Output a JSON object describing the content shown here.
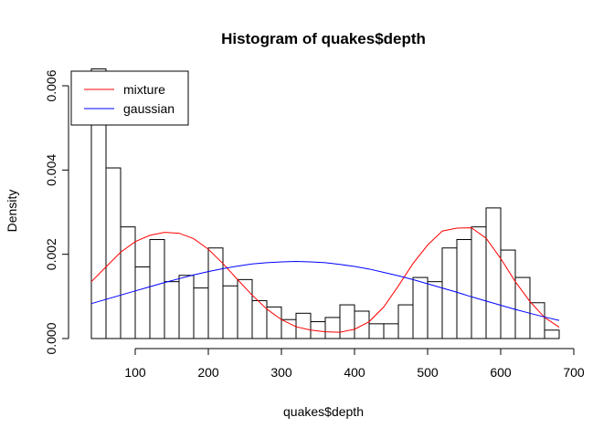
{
  "chart_data": {
    "type": "bar",
    "title": "Histogram of quakes$depth",
    "xlabel": "quakes$depth",
    "ylabel": "Density",
    "xlim": [
      40,
      700
    ],
    "ylim": [
      0,
      0.006
    ],
    "x_ticks": [
      100,
      200,
      300,
      400,
      500,
      600,
      700
    ],
    "y_ticks": [
      0.0,
      0.002,
      0.004,
      0.006
    ],
    "y_tick_labels": [
      "0.000",
      "0.002",
      "0.004",
      "0.006"
    ],
    "grid": false,
    "bins": {
      "start": 40,
      "width": 20,
      "density": [
        0.0064,
        0.00405,
        0.00265,
        0.0017,
        0.00235,
        0.00135,
        0.0015,
        0.0012,
        0.00215,
        0.00125,
        0.0014,
        0.0009,
        0.00075,
        0.00045,
        0.0006,
        0.0004,
        0.0005,
        0.0008,
        0.00065,
        0.00035,
        0.00035,
        0.0008,
        0.00145,
        0.00135,
        0.00215,
        0.00235,
        0.00265,
        0.0031,
        0.0021,
        0.00145,
        0.00085,
        0.0002
      ]
    },
    "series": [
      {
        "name": "mixture",
        "color": "#ff0000",
        "x": [
          40,
          60,
          80,
          100,
          120,
          140,
          160,
          180,
          200,
          220,
          240,
          260,
          280,
          300,
          320,
          340,
          360,
          380,
          400,
          420,
          440,
          460,
          480,
          500,
          520,
          540,
          560,
          580,
          600,
          620,
          640,
          660,
          680
        ],
        "y": [
          0.00135,
          0.0017,
          0.00205,
          0.0023,
          0.00245,
          0.00252,
          0.0025,
          0.00237,
          0.00212,
          0.00178,
          0.0014,
          0.00103,
          0.0007,
          0.00045,
          0.00028,
          0.0002,
          0.00016,
          0.00015,
          0.00022,
          0.0004,
          0.00075,
          0.00125,
          0.00178,
          0.00222,
          0.00255,
          0.00262,
          0.00263,
          0.00238,
          0.0019,
          0.00135,
          0.00088,
          0.0005,
          0.00027
        ]
      },
      {
        "name": "gaussian",
        "color": "#0000ff",
        "x": [
          40,
          60,
          80,
          100,
          120,
          140,
          160,
          180,
          200,
          220,
          240,
          260,
          280,
          300,
          320,
          340,
          360,
          380,
          400,
          420,
          440,
          460,
          480,
          500,
          520,
          540,
          560,
          580,
          600,
          620,
          640,
          660,
          680
        ],
        "y": [
          0.00083,
          0.00093,
          0.00103,
          0.00113,
          0.00123,
          0.00133,
          0.00142,
          0.00151,
          0.00159,
          0.00166,
          0.00172,
          0.00177,
          0.0018,
          0.00182,
          0.00183,
          0.00182,
          0.0018,
          0.00176,
          0.00171,
          0.00165,
          0.00157,
          0.00149,
          0.0014,
          0.0013,
          0.0012,
          0.0011,
          0.00099,
          0.00089,
          0.00079,
          0.00069,
          0.0006,
          0.00051,
          0.00043
        ]
      }
    ],
    "legend": {
      "placement": "top-left",
      "items": [
        "mixture",
        "gaussian"
      ]
    }
  }
}
